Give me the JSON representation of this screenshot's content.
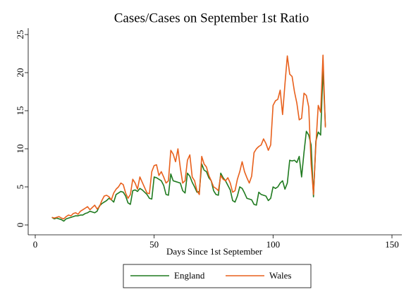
{
  "chart_data": {
    "type": "line",
    "title": "Cases/Cases on September 1st Ratio",
    "xlabel": "Days Since 1st September",
    "x": [
      7,
      8,
      9,
      10,
      11,
      12,
      13,
      14,
      15,
      16,
      17,
      18,
      19,
      20,
      21,
      22,
      23,
      24,
      25,
      26,
      27,
      28,
      29,
      30,
      31,
      32,
      33,
      34,
      35,
      36,
      37,
      38,
      39,
      40,
      41,
      42,
      43,
      44,
      45,
      46,
      47,
      48,
      49,
      50,
      51,
      52,
      53,
      54,
      55,
      56,
      57,
      58,
      59,
      60,
      61,
      62,
      63,
      64,
      65,
      66,
      67,
      68,
      69,
      70,
      71,
      72,
      73,
      74,
      75,
      76,
      77,
      78,
      79,
      80,
      81,
      82,
      83,
      84,
      85,
      86,
      87,
      88,
      89,
      90,
      91,
      92,
      93,
      94,
      95,
      96,
      97,
      98,
      99,
      100,
      101,
      102,
      103,
      104,
      105,
      106,
      107,
      108,
      109,
      110,
      111,
      112,
      113,
      114,
      115,
      116,
      117,
      118,
      119,
      120,
      121,
      122
    ],
    "series": [
      {
        "name": "England",
        "color": "#1f7a1f",
        "values": [
          1.0,
          0.8,
          0.9,
          0.8,
          0.7,
          0.5,
          0.8,
          0.9,
          1.0,
          1.1,
          1.2,
          1.2,
          1.3,
          1.3,
          1.5,
          1.6,
          1.8,
          1.7,
          1.6,
          1.8,
          2.5,
          2.8,
          3.0,
          3.2,
          3.5,
          3.3,
          3.0,
          4.0,
          4.2,
          4.4,
          4.3,
          3.8,
          2.9,
          2.7,
          4.5,
          4.6,
          4.4,
          4.8,
          4.6,
          4.3,
          4.0,
          3.5,
          3.4,
          6.3,
          6.2,
          6.0,
          5.8,
          5.2,
          4.0,
          3.9,
          6.7,
          5.8,
          5.7,
          5.6,
          5.5,
          4.5,
          4.2,
          6.8,
          6.4,
          5.6,
          5.0,
          4.3,
          4.4,
          8.0,
          7.2,
          7.0,
          6.2,
          5.8,
          4.5,
          4.0,
          3.9,
          6.8,
          6.2,
          5.8,
          5.2,
          4.6,
          3.2,
          3.0,
          3.8,
          5.0,
          4.8,
          4.2,
          3.5,
          3.4,
          3.3,
          2.7,
          2.6,
          4.3,
          4.0,
          3.9,
          3.8,
          3.2,
          3.5,
          5.0,
          4.8,
          5.0,
          5.5,
          5.8,
          4.7,
          5.5,
          8.5,
          8.4,
          8.5,
          8.2,
          9.0,
          6.3,
          9.5,
          12.3,
          11.8,
          10.5,
          3.7,
          11.0,
          12.2,
          11.8,
          20.5,
          13.0
        ]
      },
      {
        "name": "Wales",
        "color": "#e8601c",
        "values": [
          1.0,
          0.9,
          1.0,
          1.1,
          0.9,
          0.8,
          1.1,
          1.3,
          1.2,
          1.5,
          1.6,
          1.4,
          1.8,
          2.0,
          2.2,
          2.4,
          2.0,
          2.3,
          2.6,
          2.1,
          2.4,
          3.2,
          3.8,
          3.9,
          3.7,
          3.3,
          4.2,
          4.7,
          5.0,
          5.5,
          5.3,
          4.2,
          3.5,
          4.0,
          6.0,
          5.5,
          4.7,
          6.3,
          5.6,
          4.9,
          4.2,
          4.1,
          7.0,
          7.8,
          7.9,
          6.5,
          7.0,
          6.3,
          5.5,
          5.8,
          9.8,
          9.3,
          8.3,
          10.0,
          7.5,
          5.5,
          5.8,
          8.5,
          9.2,
          6.3,
          5.8,
          4.5,
          4.0,
          9.0,
          8.0,
          7.6,
          6.5,
          5.8,
          5.0,
          4.8,
          4.5,
          6.5,
          6.0,
          5.8,
          6.2,
          5.5,
          4.3,
          4.5,
          6.0,
          7.0,
          8.3,
          7.0,
          6.2,
          5.5,
          6.4,
          9.5,
          10.0,
          10.3,
          10.5,
          11.3,
          10.7,
          9.8,
          10.5,
          15.7,
          16.3,
          16.5,
          17.7,
          14.5,
          18.5,
          22.2,
          19.8,
          19.5,
          17.5,
          16.0,
          13.8,
          14.0,
          17.3,
          17.0,
          15.5,
          8.0,
          4.0,
          10.5,
          15.7,
          14.8,
          22.3,
          12.8
        ]
      }
    ],
    "xlim": [
      0,
      150
    ],
    "xticks": [
      0,
      50,
      100,
      150
    ],
    "ylim": [
      0,
      25
    ],
    "yticks": [
      0,
      5,
      10,
      15,
      20,
      25
    ],
    "legend": "bottom"
  }
}
